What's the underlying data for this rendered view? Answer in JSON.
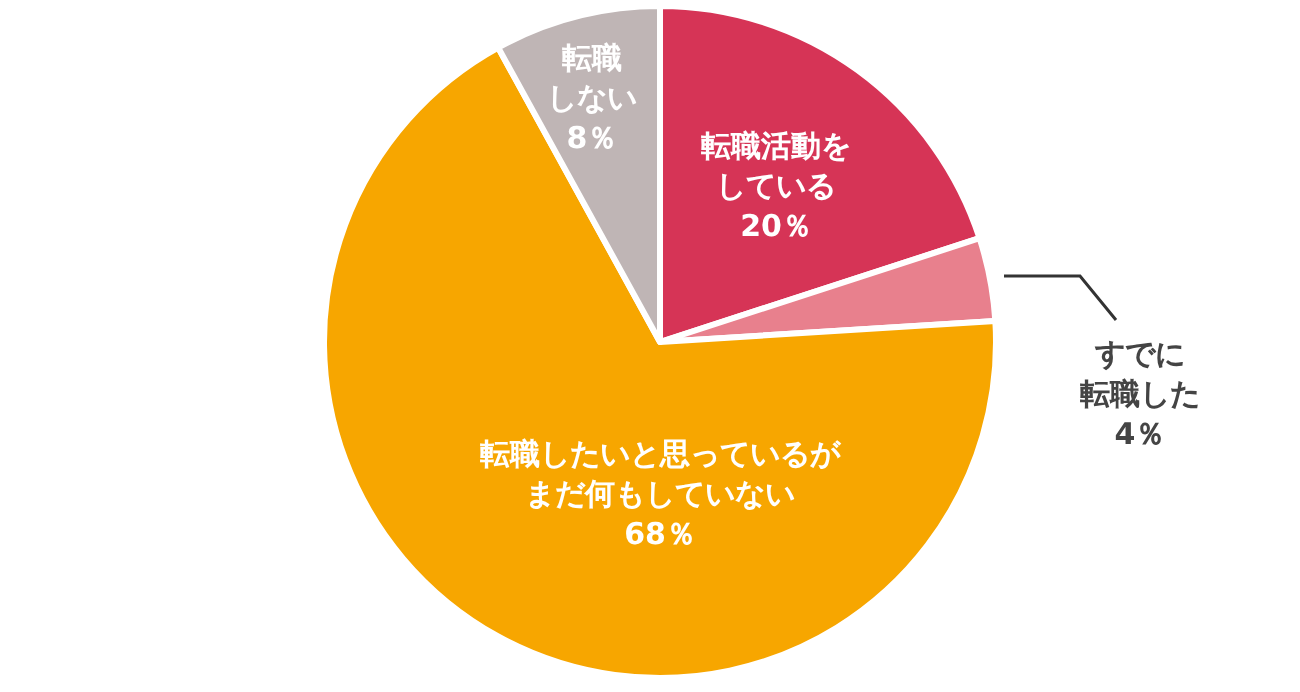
{
  "chart_data": {
    "type": "pie",
    "categories": [
      "転職活動をしている",
      "すでに転職した",
      "転職したいと思っているがまだ何もしていない",
      "転職しない"
    ],
    "values": [
      20,
      4,
      68,
      8
    ],
    "colors": [
      "#d63456",
      "#e8808d",
      "#f7a600",
      "#bfb5b5"
    ],
    "value_labels": [
      "20％",
      "4％",
      "68％",
      "8％"
    ]
  }
}
